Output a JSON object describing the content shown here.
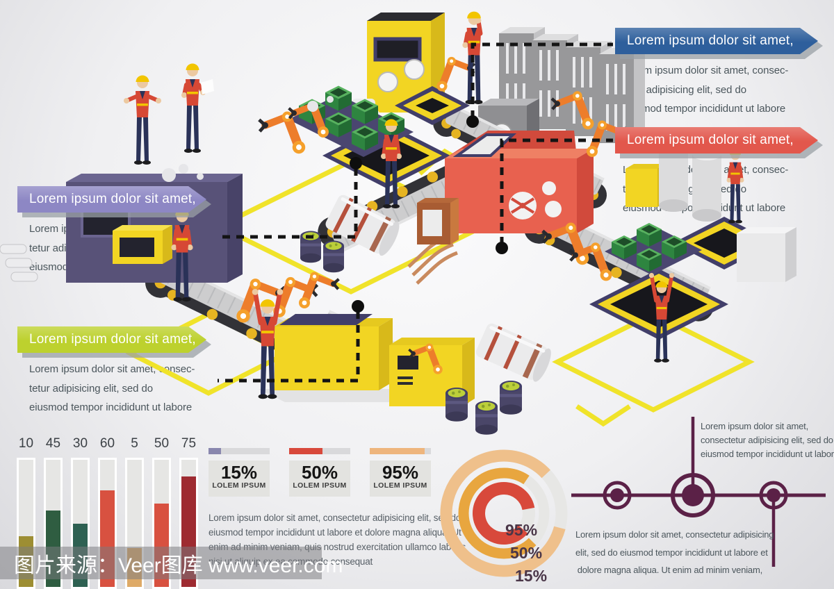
{
  "title": "isometric factory equipment infographic",
  "background": {
    "top": "#fbfbfc",
    "bottom": "#d9d9dd"
  },
  "callouts": [
    {
      "id": "blue",
      "color": "#2e5f9c",
      "title": "Lorem ipsum dolor sit amet,",
      "body_lines": [
        "Lorem ipsum dolor sit amet, consec-",
        "tetur adipisicing elit, sed do",
        "eiusmod tempor incididunt ut labore"
      ]
    },
    {
      "id": "red",
      "color": "#e2574c",
      "title": "Lorem ipsum dolor sit amet,",
      "body_lines": [
        "Lorem ipsum dolor sit amet, consec-",
        "tetur adipisicing elit, sed do",
        "eiusmod tempor incididunt ut labore"
      ]
    },
    {
      "id": "purple",
      "color": "#8d87c4",
      "title": "Lorem ipsum dolor sit amet,",
      "body_lines": [
        "Lorem ipsum dolor sit amet, consec-",
        "tetur adipisicing elit, sed do",
        "eiusmod tempor incididunt ut labore"
      ]
    },
    {
      "id": "green",
      "color": "#bdd12e",
      "title": "Lorem ipsum dolor sit amet,",
      "body_lines": [
        "Lorem ipsum dolor sit amet, consec-",
        "tetur adipisicing elit, sed do",
        "eiusmod tempor incididunt ut labore"
      ]
    }
  ],
  "chart_data": [
    {
      "type": "bar",
      "title": "",
      "categories": [
        "10",
        "45",
        "30",
        "60",
        "5",
        "50",
        "75"
      ],
      "values": [
        10,
        45,
        30,
        60,
        5,
        50,
        75
      ],
      "bar_colors": [
        "#9d8e33",
        "#2f5d41",
        "#2e6152",
        "#d85140",
        "#deaa67",
        "#d85140",
        "#9e2b31"
      ],
      "track_color": "#e6e6e4",
      "value_labels_position": "top",
      "ylim": [
        0,
        100
      ],
      "grid": false
    },
    {
      "type": "donut",
      "rings": [
        {
          "label": "95%",
          "value": 95,
          "color": "#d8493b"
        },
        {
          "label": "50%",
          "value": 50,
          "color": "#e8a63f"
        },
        {
          "label": "15%",
          "value": 15,
          "color": "#efc08b"
        }
      ],
      "track_color": "#e7e7e5",
      "legend_position": "bottom-right"
    }
  ],
  "stats": [
    {
      "percent": "15%",
      "label": "LOLEM IPSUM",
      "bar_color": "#8987ae",
      "bar_fill_pct": 20
    },
    {
      "percent": "50%",
      "label": "LOLEM IPSUM",
      "bar_color": "#d8493b",
      "bar_fill_pct": 54
    },
    {
      "percent": "95%",
      "label": "LOLEM IPSUM",
      "bar_color": "#eeb57d",
      "bar_fill_pct": 90
    }
  ],
  "paragraph_lines": [
    "Lorem ipsum dolor sit amet, consectetur adipisicing elit, sed do",
    "eiusmod tempor incididunt ut labore et dolore magna aliqua. Ut",
    "enim ad minim veniam, quis nostrud exercitation ullamco laboris",
    "nisi ut aliquip ex ea commodo consequat"
  ],
  "plane": {
    "color": "#5b2147",
    "text_top_lines": [
      "Lorem ipsum dolor sit amet,",
      "consectetur adipisicing elit, sed do",
      "eiusmod tempor incididunt ut labore"
    ],
    "text_bottom_lines": [
      "Lorem ipsum dolor sit amet, consectetur adipisicing",
      "elit, sed do eiusmod tempor incididunt ut labore et",
      "dolore magna aliqua. Ut enim ad minim veniam,"
    ]
  },
  "watermark": {
    "text": "图片来源：Veer图库 www.veer.com",
    "band_color": "rgba(122,122,126,0.52)"
  },
  "scene": {
    "description": "isometric factory floor illustration",
    "elements": [
      "factory-workers",
      "conveyor-belts",
      "robot-arms",
      "green-crates",
      "storage-tanks",
      "barrels",
      "server-cabinets",
      "yellow-machines",
      "purple-machine",
      "red-machine",
      "yellow-floor-markings",
      "dashed-connector-lines"
    ]
  }
}
